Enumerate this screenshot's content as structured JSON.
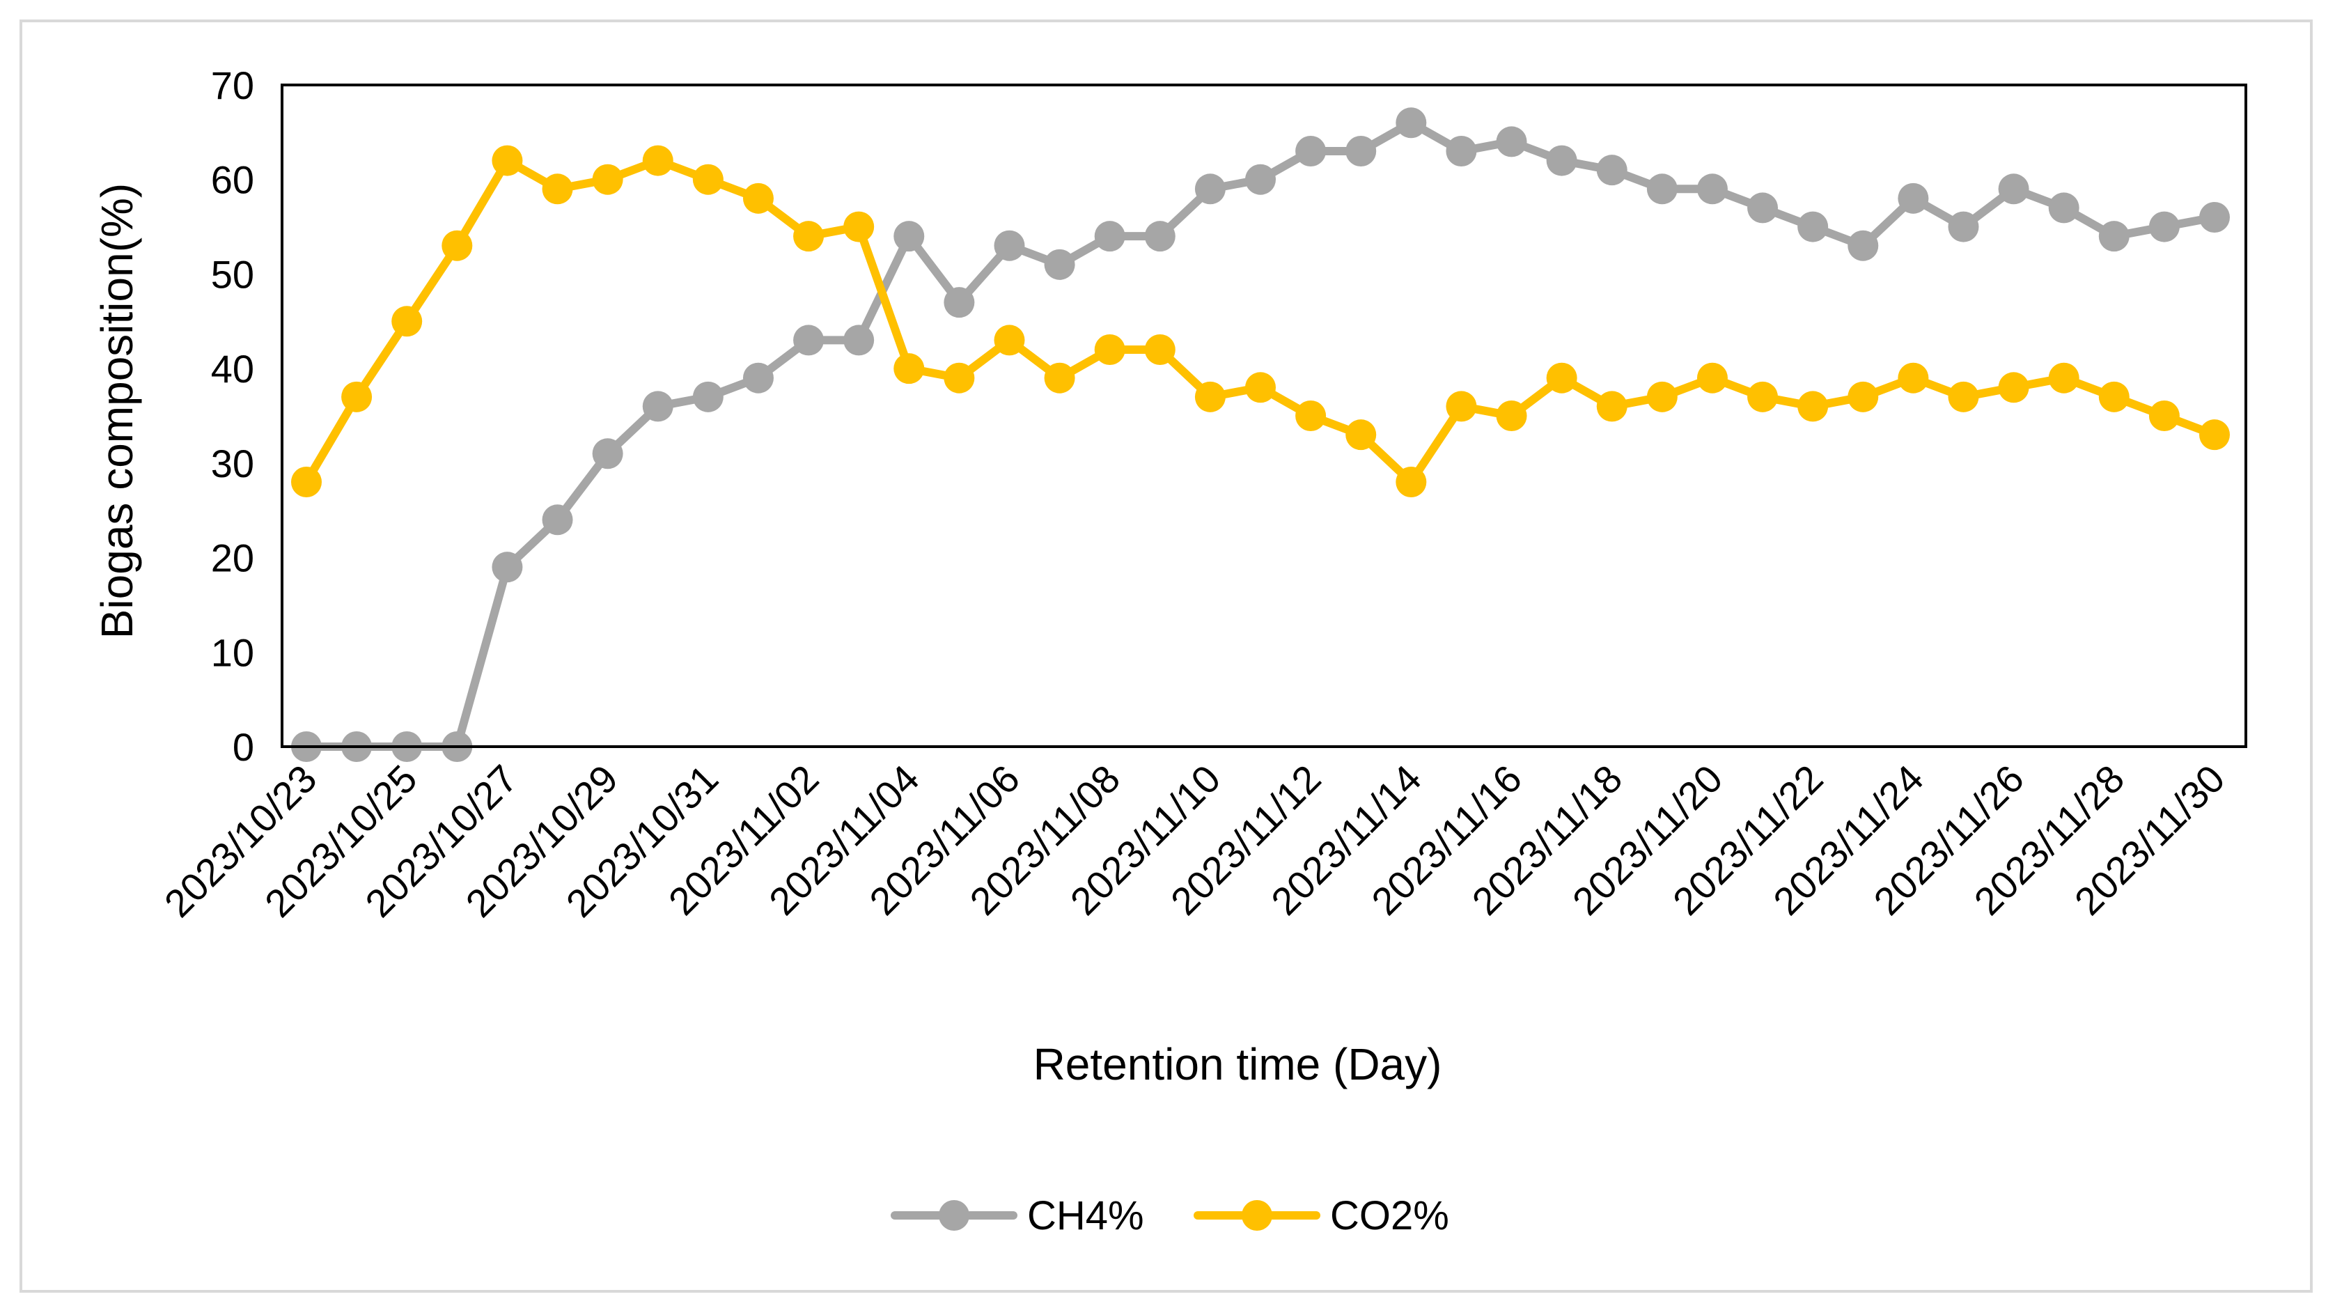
{
  "chart_data": {
    "type": "line",
    "title": "",
    "xlabel": "Retention time (Day)",
    "ylabel": "Biogas composition(%)",
    "ylim": [
      0,
      70
    ],
    "yticks": [
      "0",
      "10",
      "20",
      "30",
      "40",
      "50",
      "60",
      "70"
    ],
    "x": [
      "2023/10/23",
      "2023/10/24",
      "2023/10/25",
      "2023/10/26",
      "2023/10/27",
      "2023/10/28",
      "2023/10/29",
      "2023/10/30",
      "2023/10/31",
      "2023/11/01",
      "2023/11/02",
      "2023/11/03",
      "2023/11/04",
      "2023/11/05",
      "2023/11/06",
      "2023/11/07",
      "2023/11/08",
      "2023/11/09",
      "2023/11/10",
      "2023/11/11",
      "2023/11/12",
      "2023/11/13",
      "2023/11/14",
      "2023/11/15",
      "2023/11/16",
      "2023/11/17",
      "2023/11/18",
      "2023/11/19",
      "2023/11/20",
      "2023/11/21",
      "2023/11/22",
      "2023/11/23",
      "2023/11/24",
      "2023/11/25",
      "2023/11/26",
      "2023/11/27",
      "2023/11/28",
      "2023/11/29",
      "2023/11/30"
    ],
    "x_tick_labels": [
      "2023/10/23",
      "2023/10/25",
      "2023/10/27",
      "2023/10/29",
      "2023/10/31",
      "2023/11/02",
      "2023/11/04",
      "2023/11/06",
      "2023/11/08",
      "2023/11/10",
      "2023/11/12",
      "2023/11/14",
      "2023/11/16",
      "2023/11/18",
      "2023/11/20",
      "2023/11/22",
      "2023/11/24",
      "2023/11/26",
      "2023/11/28",
      "2023/11/30"
    ],
    "series": [
      {
        "name": "CH4%",
        "color": "#a6a6a6",
        "values": [
          0,
          0,
          0,
          0,
          19,
          24,
          31,
          36,
          37,
          39,
          43,
          43,
          54,
          47,
          53,
          51,
          54,
          54,
          59,
          60,
          63,
          63,
          66,
          63,
          64,
          62,
          61,
          59,
          59,
          57,
          55,
          53,
          58,
          55,
          59,
          57,
          54,
          55,
          56
        ]
      },
      {
        "name": "CO2%",
        "color": "#ffc000",
        "values": [
          28,
          37,
          45,
          53,
          62,
          59,
          60,
          62,
          60,
          58,
          54,
          55,
          40,
          39,
          43,
          39,
          42,
          42,
          37,
          38,
          35,
          33,
          28,
          36,
          35,
          39,
          36,
          37,
          39,
          37,
          36,
          37,
          39,
          37,
          38,
          39,
          37,
          35,
          33
        ]
      }
    ],
    "legend_position": "bottom-center",
    "grid": false
  }
}
